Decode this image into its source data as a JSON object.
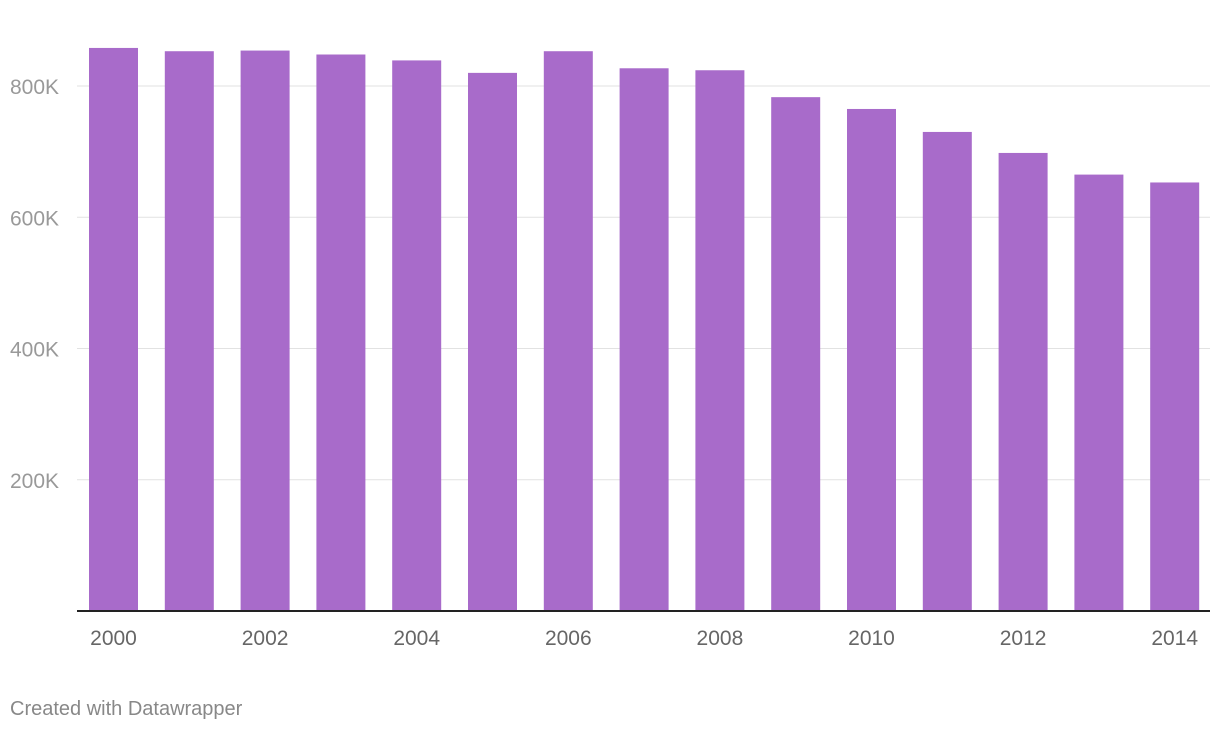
{
  "chart_data": {
    "type": "bar",
    "categories": [
      "2000",
      "2001",
      "2002",
      "2003",
      "2004",
      "2005",
      "2006",
      "2007",
      "2008",
      "2009",
      "2010",
      "2011",
      "2012",
      "2013",
      "2014"
    ],
    "values": [
      858000,
      853000,
      854000,
      848000,
      839000,
      820000,
      853000,
      827000,
      824000,
      783000,
      765000,
      730000,
      698000,
      665000,
      653000
    ],
    "x_tick_labels": [
      "2000",
      "2002",
      "2004",
      "2006",
      "2008",
      "2010",
      "2012",
      "2014"
    ],
    "y_ticks": [
      {
        "value": 200000,
        "label": "200K"
      },
      {
        "value": 400000,
        "label": "400K"
      },
      {
        "value": 600000,
        "label": "600K"
      },
      {
        "value": 800000,
        "label": "800K"
      }
    ],
    "ylim": [
      0,
      900000
    ],
    "grid": true,
    "bar_color": "#a86bca",
    "title": "",
    "xlabel": "",
    "ylabel": ""
  },
  "footer": {
    "credit": "Created with Datawrapper"
  }
}
